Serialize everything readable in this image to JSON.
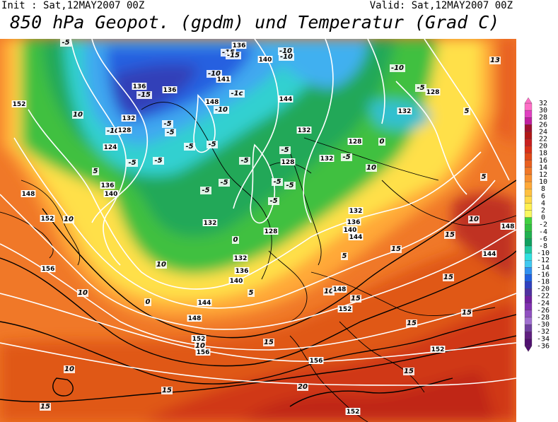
{
  "header": {
    "init": "Init : Sat,12MAY2007 00Z",
    "valid": "Valid: Sat,12MAY2007 00Z",
    "title": "850 hPa Geopot. (gpdm) und Temperatur (Grad C)"
  },
  "colorbar": {
    "ticks": [
      "32",
      "30",
      "28",
      "26",
      "24",
      "22",
      "20",
      "18",
      "16",
      "14",
      "12",
      "10",
      "8",
      "6",
      "4",
      "2",
      "0",
      "-2",
      "-4",
      "-6",
      "-8",
      "-10",
      "-12",
      "-14",
      "-16",
      "-18",
      "-20",
      "-22",
      "-24",
      "-26",
      "-28",
      "-30",
      "-32",
      "-34",
      "-36"
    ],
    "colors": [
      "#ff6ec7",
      "#e040c0",
      "#c020a0",
      "#a01030",
      "#b01818",
      "#c82020",
      "#d83018",
      "#e04818",
      "#e86020",
      "#f07828",
      "#f89030",
      "#ffa838",
      "#ffc040",
      "#ffd848",
      "#fff050",
      "#f8f860",
      "#40d040",
      "#30c040",
      "#20b050",
      "#10a060",
      "#20c8a0",
      "#30e0e0",
      "#40c8f0",
      "#3090f0",
      "#2060e0",
      "#3040c0",
      "#5030a0",
      "#7020a0",
      "#8030b0",
      "#9050c0",
      "#a070d0",
      "#7040a0",
      "#602080",
      "#501070"
    ]
  },
  "map": {
    "temp_labels": [
      {
        "t": "-5"
      },
      {
        "t": "-15"
      },
      {
        "t": "-10"
      },
      {
        "t": "-10"
      },
      {
        "t": "-15"
      },
      {
        "t": "-10"
      },
      {
        "t": "13"
      },
      {
        "t": "-15"
      },
      {
        "t": "-10"
      },
      {
        "t": "-1c"
      },
      {
        "t": "-5"
      },
      {
        "t": "-10"
      },
      {
        "t": "-5"
      },
      {
        "t": "5"
      },
      {
        "t": "-10"
      },
      {
        "t": "-5"
      },
      {
        "t": "-5"
      },
      {
        "t": "-5"
      },
      {
        "t": "-5"
      },
      {
        "t": "-5"
      },
      {
        "t": "0"
      },
      {
        "t": "-5"
      },
      {
        "t": "-5"
      },
      {
        "t": "-5"
      },
      {
        "t": "-5"
      },
      {
        "t": "-5"
      },
      {
        "t": "-5"
      },
      {
        "t": "0"
      },
      {
        "t": "5"
      },
      {
        "t": "10"
      },
      {
        "t": "0"
      },
      {
        "t": "5"
      },
      {
        "t": "10"
      },
      {
        "t": "15"
      },
      {
        "t": "10"
      },
      {
        "t": "5"
      },
      {
        "t": "10"
      },
      {
        "t": "10"
      },
      {
        "t": "15"
      },
      {
        "t": "15"
      },
      {
        "t": "15"
      },
      {
        "t": "15"
      },
      {
        "t": "10"
      },
      {
        "t": "15"
      },
      {
        "t": "10"
      },
      {
        "t": "15"
      },
      {
        "t": "20"
      },
      {
        "t": "15"
      },
      {
        "t": "15"
      },
      {
        "t": "15"
      },
      {
        "t": "10"
      },
      {
        "t": "10"
      },
      {
        "t": "5"
      },
      {
        "t": "-5"
      },
      {
        "t": "-5"
      }
    ],
    "geo_labels": [
      {
        "t": "136"
      },
      {
        "t": "140"
      },
      {
        "t": "136"
      },
      {
        "t": "136"
      },
      {
        "t": "144"
      },
      {
        "t": "148"
      },
      {
        "t": "152"
      },
      {
        "t": "132"
      },
      {
        "t": "128"
      },
      {
        "t": "124"
      },
      {
        "t": "132"
      },
      {
        "t": "128"
      },
      {
        "t": "128"
      },
      {
        "t": "132"
      },
      {
        "t": "128"
      },
      {
        "t": "132"
      },
      {
        "t": "136"
      },
      {
        "t": "140"
      },
      {
        "t": "148"
      },
      {
        "t": "152"
      },
      {
        "t": "156"
      },
      {
        "t": "136"
      },
      {
        "t": "140"
      },
      {
        "t": "144"
      },
      {
        "t": "148"
      },
      {
        "t": "152"
      },
      {
        "t": "156"
      },
      {
        "t": "132"
      },
      {
        "t": "132"
      },
      {
        "t": "136"
      },
      {
        "t": "140"
      },
      {
        "t": "144"
      },
      {
        "t": "148"
      },
      {
        "t": "152"
      },
      {
        "t": "152"
      },
      {
        "t": "156"
      },
      {
        "t": "152"
      },
      {
        "t": "148"
      },
      {
        "t": "144"
      },
      {
        "t": "128"
      },
      {
        "t": "132"
      },
      {
        "t": "141"
      }
    ]
  }
}
